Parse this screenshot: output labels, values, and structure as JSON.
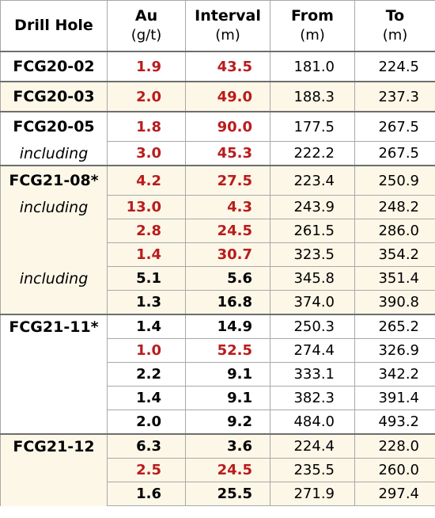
{
  "header": {
    "drill_hole": "Drill Hole",
    "au": "Au",
    "au_unit": "(g/t)",
    "interval": "Interval",
    "interval_unit": "(m)",
    "from": "From",
    "from_unit": "(m)",
    "to": "To",
    "to_unit": "(m)"
  },
  "colors": {
    "highlight": "#b91c1c",
    "shade": "#fdf7e8"
  },
  "rows": [
    {
      "hole": "FCG20-02",
      "au": "1.9",
      "interval": "43.5",
      "from": "181.0",
      "to": "224.5",
      "red": true,
      "group_start": true,
      "shade": false
    },
    {
      "hole": "FCG20-03",
      "au": "2.0",
      "interval": "49.0",
      "from": "188.3",
      "to": "237.3",
      "red": true,
      "group_start": true,
      "shade": true
    },
    {
      "hole": "FCG20-05",
      "au": "1.8",
      "interval": "90.0",
      "from": "177.5",
      "to": "267.5",
      "red": true,
      "group_start": true,
      "shade": false
    },
    {
      "hole": "including",
      "au": "3.0",
      "interval": "45.3",
      "from": "222.2",
      "to": "267.5",
      "red": true,
      "group_start": false,
      "shade": false
    },
    {
      "hole": "FCG21-08*",
      "au": "4.2",
      "interval": "27.5",
      "from": "223.4",
      "to": "250.9",
      "red": true,
      "group_start": true,
      "shade": true
    },
    {
      "hole": "including",
      "au": "13.0",
      "interval": "4.3",
      "from": "243.9",
      "to": "248.2",
      "red": true,
      "group_start": false,
      "shade": true
    },
    {
      "hole": "",
      "au": "2.8",
      "interval": "24.5",
      "from": "261.5",
      "to": "286.0",
      "red": true,
      "group_start": false,
      "shade": true
    },
    {
      "hole": "",
      "au": "1.4",
      "interval": "30.7",
      "from": "323.5",
      "to": "354.2",
      "red": true,
      "group_start": false,
      "shade": true
    },
    {
      "hole": "including",
      "au": "5.1",
      "interval": "5.6",
      "from": "345.8",
      "to": "351.4",
      "red": false,
      "group_start": false,
      "shade": true
    },
    {
      "hole": "",
      "au": "1.3",
      "interval": "16.8",
      "from": "374.0",
      "to": "390.8",
      "red": false,
      "group_start": false,
      "shade": true
    },
    {
      "hole": "FCG21-11*",
      "au": "1.4",
      "interval": "14.9",
      "from": "250.3",
      "to": "265.2",
      "red": false,
      "group_start": true,
      "shade": false
    },
    {
      "hole": "",
      "au": "1.0",
      "interval": "52.5",
      "from": "274.4",
      "to": "326.9",
      "red": true,
      "group_start": false,
      "shade": false
    },
    {
      "hole": "",
      "au": "2.2",
      "interval": "9.1",
      "from": "333.1",
      "to": "342.2",
      "red": false,
      "group_start": false,
      "shade": false
    },
    {
      "hole": "",
      "au": "1.4",
      "interval": "9.1",
      "from": "382.3",
      "to": "391.4",
      "red": false,
      "group_start": false,
      "shade": false
    },
    {
      "hole": "",
      "au": "2.0",
      "interval": "9.2",
      "from": "484.0",
      "to": "493.2",
      "red": false,
      "group_start": false,
      "shade": false
    },
    {
      "hole": "FCG21-12",
      "au": "6.3",
      "interval": "3.6",
      "from": "224.4",
      "to": "228.0",
      "red": false,
      "group_start": true,
      "shade": true
    },
    {
      "hole": "",
      "au": "2.5",
      "interval": "24.5",
      "from": "235.5",
      "to": "260.0",
      "red": true,
      "group_start": false,
      "shade": true
    },
    {
      "hole": "",
      "au": "1.6",
      "interval": "25.5",
      "from": "271.9",
      "to": "297.4",
      "red": false,
      "group_start": false,
      "shade": true
    }
  ]
}
